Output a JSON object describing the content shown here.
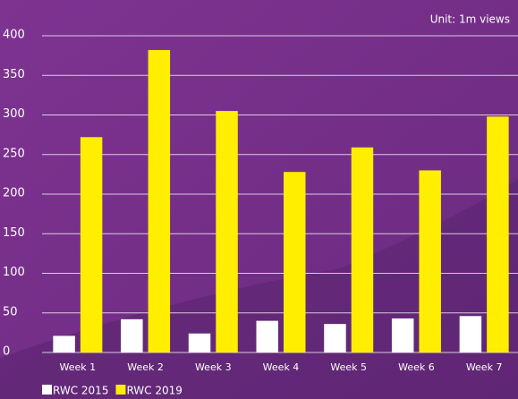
{
  "chart_data": {
    "type": "bar",
    "subtitle": "Unit: 1m views",
    "categories": [
      "Week 1",
      "Week 2",
      "Week 3",
      "Week 4",
      "Week 5",
      "Week 6",
      "Week 7"
    ],
    "series": [
      {
        "name": "RWC 2015",
        "color": "#ffffff",
        "values": [
          21,
          42,
          24,
          40,
          36,
          43,
          46
        ]
      },
      {
        "name": "RWC 2019",
        "color": "#ffee00",
        "values": [
          272,
          382,
          305,
          228,
          259,
          230,
          298
        ]
      }
    ],
    "ylim": [
      0,
      400
    ],
    "yticks": [
      0,
      50,
      100,
      150,
      200,
      250,
      300,
      350,
      400
    ],
    "grid": true
  }
}
